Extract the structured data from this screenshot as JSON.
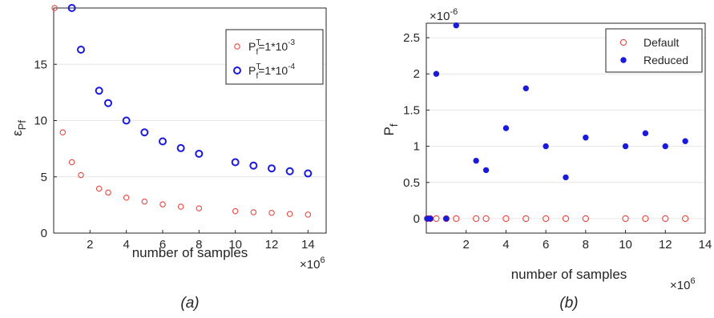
{
  "chart_data": [
    {
      "type": "scatter",
      "panel": "a",
      "caption": "(a)",
      "xlabel": "number of samples",
      "x_exponent": "×10^6",
      "ylabel": "ε_Pf",
      "xlim": [
        0,
        15
      ],
      "ylim": [
        0,
        20
      ],
      "xticks": [
        2,
        4,
        6,
        8,
        10,
        12,
        14
      ],
      "yticks": [
        0,
        5,
        10,
        15
      ],
      "grid": "horizontal",
      "legend_position": "top-right",
      "series": [
        {
          "name": "P_f^T=1*10^-3",
          "color": "#e8473f",
          "marker": "open-circle-small",
          "x": [
            0.05,
            0.5,
            1,
            1.5,
            2.5,
            3,
            4,
            5,
            6,
            7,
            8,
            10,
            11,
            12,
            13,
            14
          ],
          "y": [
            20,
            8.95,
            6.3,
            5.15,
            3.95,
            3.6,
            3.15,
            2.8,
            2.55,
            2.35,
            2.2,
            1.95,
            1.85,
            1.8,
            1.7,
            1.65
          ]
        },
        {
          "name": "P_f^T=1*10^-4",
          "color": "#1a1adb",
          "marker": "open-circle-large",
          "x": [
            1,
            1.5,
            2.5,
            3,
            4,
            5,
            6,
            7,
            8,
            10,
            11,
            12,
            13,
            14
          ],
          "y": [
            20,
            16.3,
            12.65,
            11.55,
            10,
            8.95,
            8.15,
            7.55,
            7.05,
            6.3,
            6.0,
            5.75,
            5.5,
            5.3
          ]
        }
      ]
    },
    {
      "type": "scatter",
      "panel": "b",
      "caption": "(b)",
      "xlabel": "number of samples",
      "x_exponent": "×10^6",
      "ylabel": "P_f",
      "y_exponent": "×10^-6",
      "xlim": [
        0,
        14
      ],
      "ylim": [
        -0.2,
        2.7
      ],
      "xticks": [
        2,
        4,
        6,
        8,
        10,
        12,
        14
      ],
      "yticks": [
        0,
        0.5,
        1,
        1.5,
        2,
        2.5
      ],
      "grid": "horizontal",
      "legend_position": "top-right",
      "series": [
        {
          "name": "Default",
          "color": "#e8473f",
          "marker": "open-circle",
          "x": [
            0.05,
            0.2,
            0.5,
            1,
            1.5,
            2.5,
            3,
            4,
            5,
            6,
            7,
            8,
            10,
            11,
            12,
            13
          ],
          "y": [
            0,
            0,
            0,
            0,
            0,
            0,
            0,
            0,
            0,
            0,
            0,
            0,
            0,
            0,
            0,
            0
          ]
        },
        {
          "name": "Reduced",
          "color": "#1a1adb",
          "marker": "filled-dot",
          "x": [
            0.05,
            0.2,
            0.5,
            1,
            1.5,
            2.5,
            3,
            4,
            5,
            6,
            7,
            8,
            10,
            11,
            12,
            13
          ],
          "y": [
            0,
            0,
            2.0,
            0,
            2.67,
            0.8,
            0.67,
            1.25,
            1.8,
            1.0,
            0.57,
            1.12,
            1.0,
            1.18,
            1.0,
            1.07
          ]
        }
      ]
    }
  ]
}
